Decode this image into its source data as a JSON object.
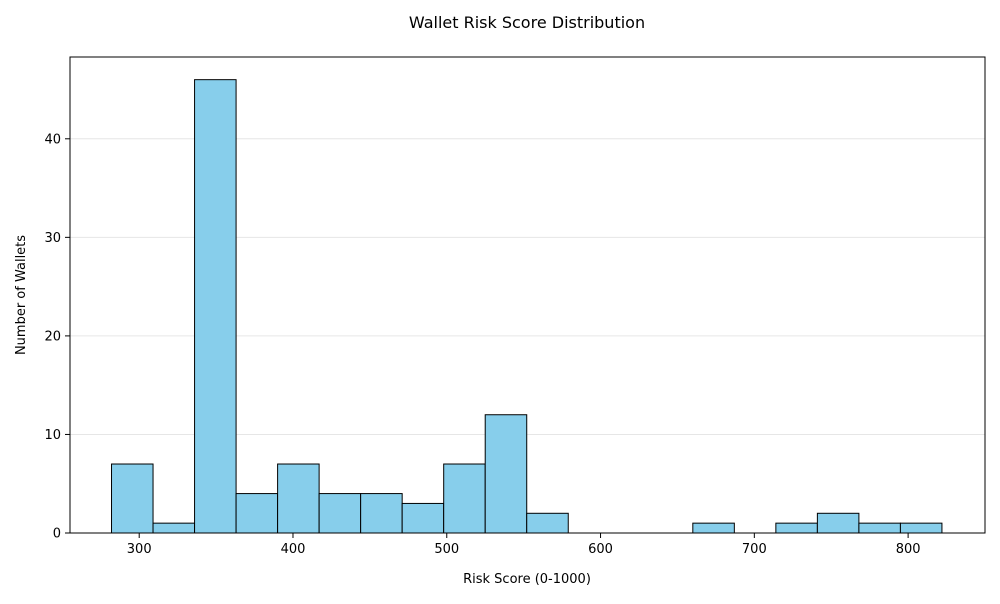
{
  "chart_data": {
    "type": "bar",
    "subtype": "histogram",
    "title": "Wallet Risk Score Distribution",
    "xlabel": "Risk Score (0-1000)",
    "ylabel": "Number of Wallets",
    "xlim": [
      255,
      850
    ],
    "ylim": [
      0,
      48.3
    ],
    "x_ticks": [
      300,
      400,
      500,
      600,
      700,
      800
    ],
    "y_ticks": [
      0,
      10,
      20,
      30,
      40
    ],
    "grid": {
      "y": true,
      "x": false
    },
    "bar_color": "#87ceeb",
    "edge_color": "#000000",
    "bin_edges": [
      282,
      309,
      336,
      363,
      390,
      417,
      444,
      471,
      498,
      525,
      552,
      579,
      606,
      633,
      660,
      687,
      714,
      741,
      768,
      795,
      822
    ],
    "values": [
      7,
      1,
      46,
      4,
      7,
      4,
      4,
      3,
      7,
      12,
      2,
      0,
      0,
      0,
      1,
      0,
      1,
      2,
      1,
      1
    ]
  }
}
